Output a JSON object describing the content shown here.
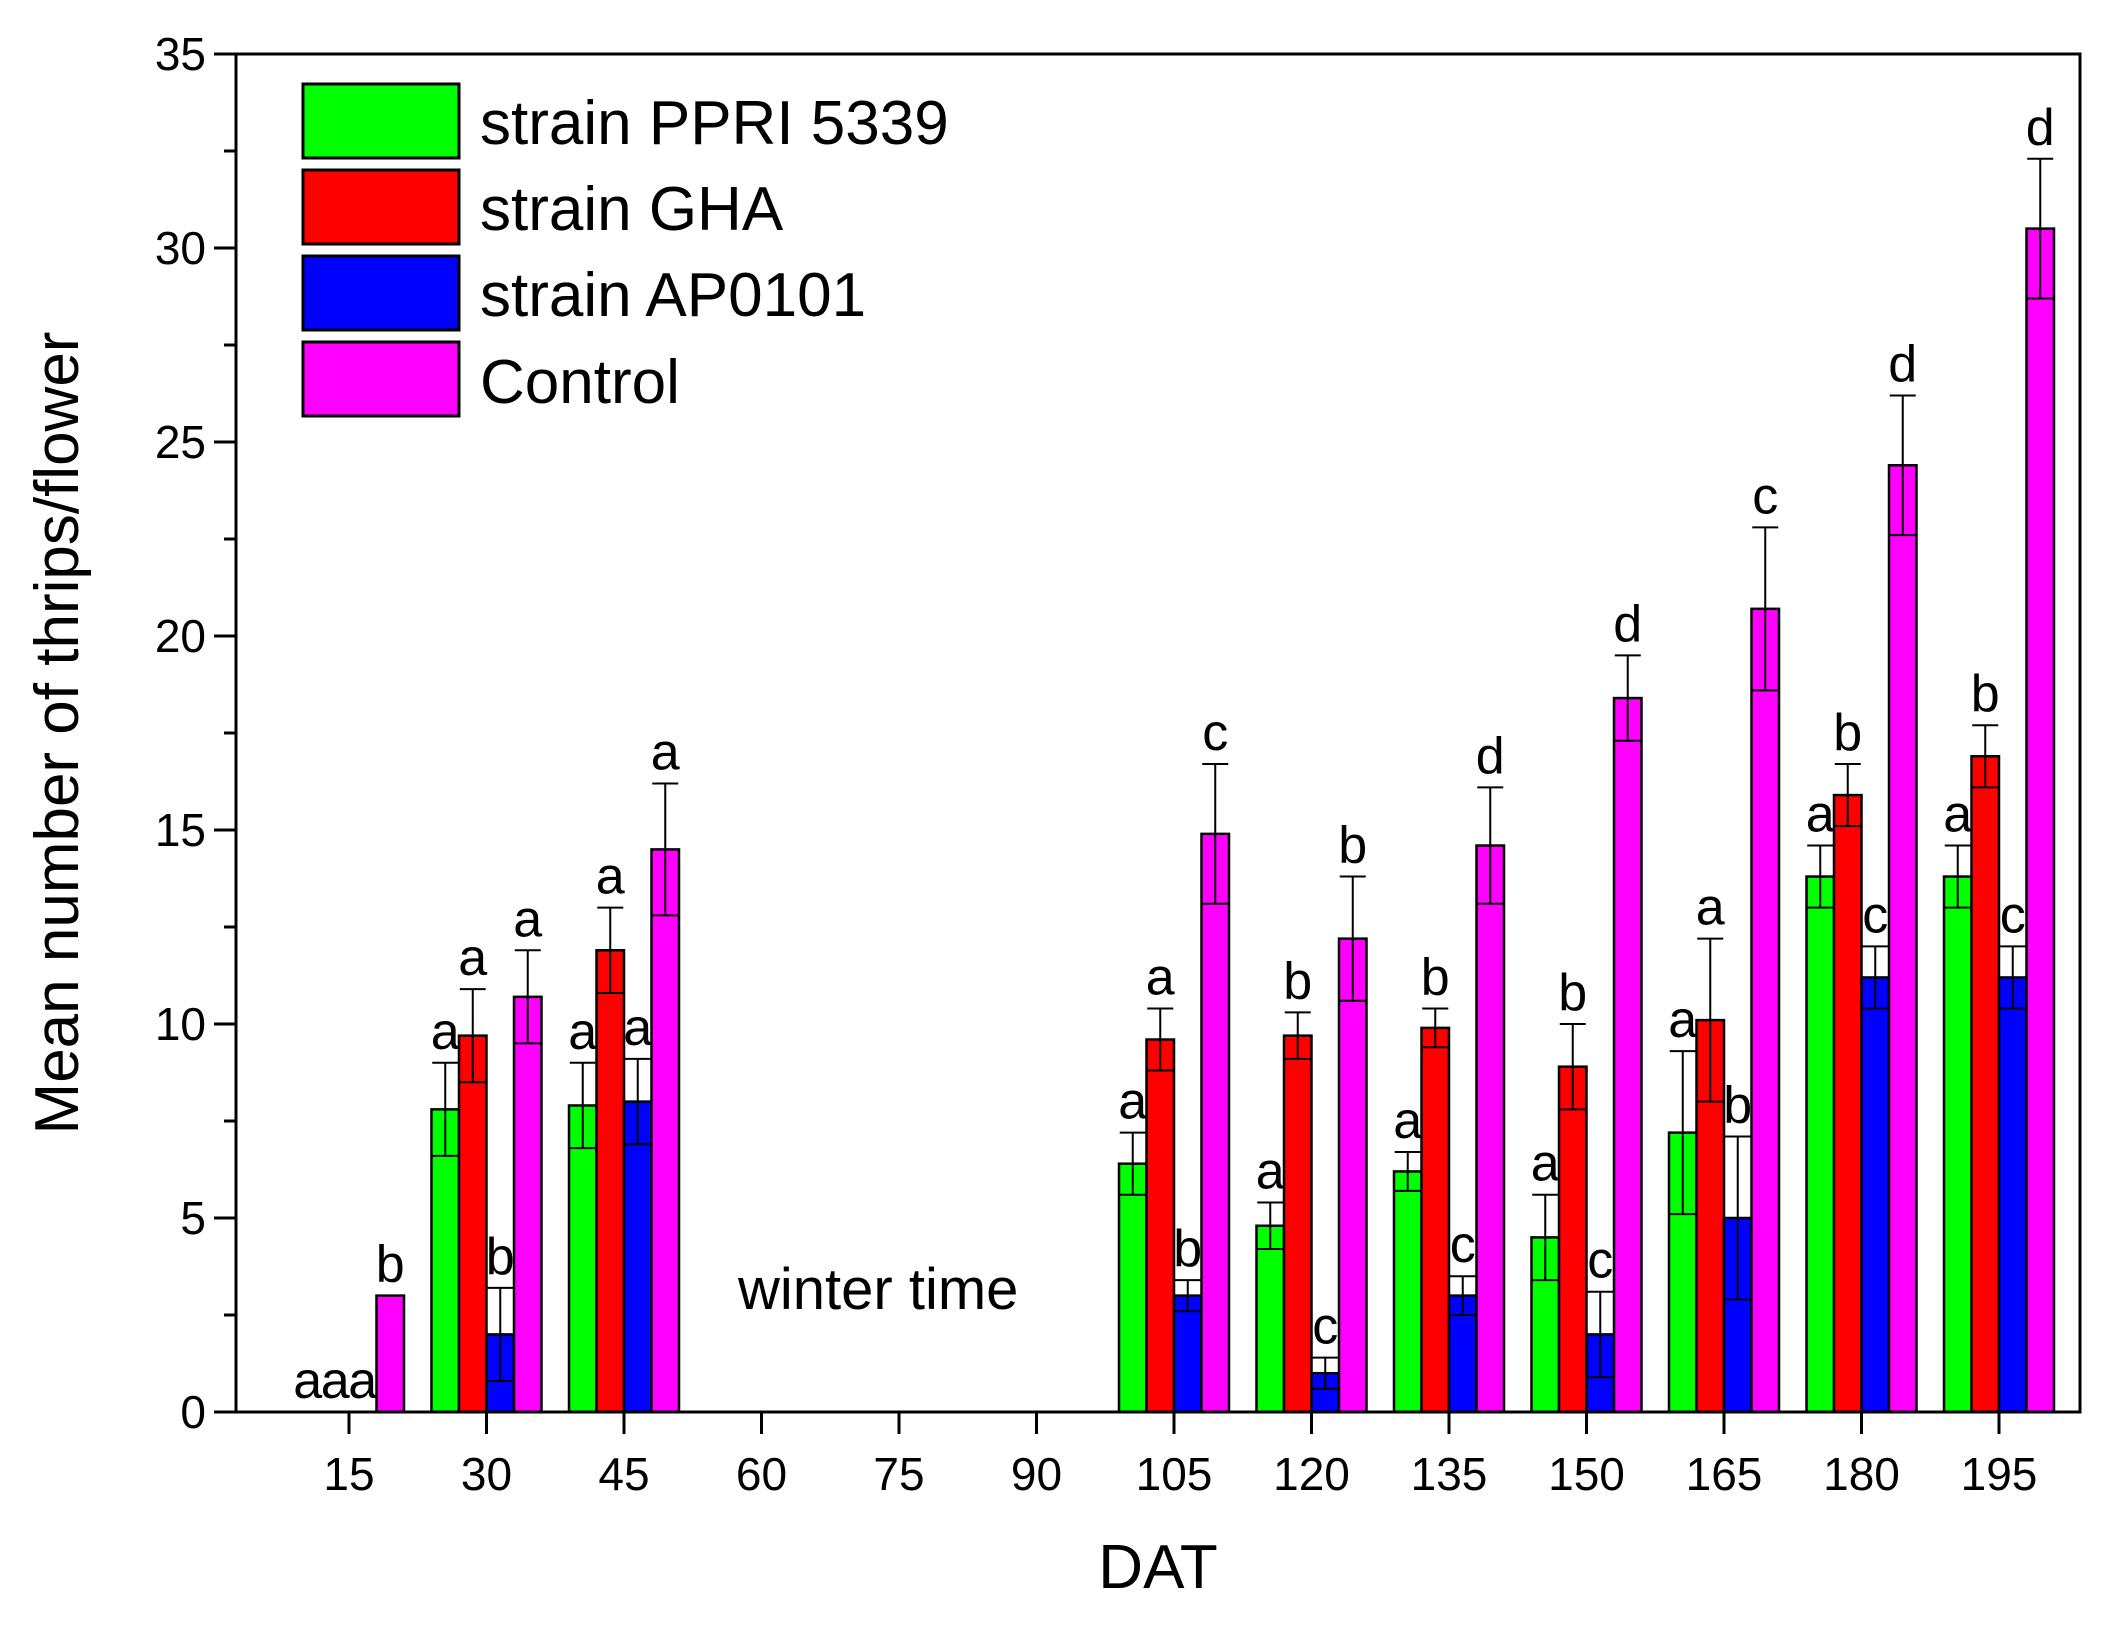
{
  "chart_data": {
    "type": "bar",
    "title": "",
    "xlabel": "DAT",
    "ylabel": "Mean number of thrips/flower",
    "ylim": [
      0,
      35
    ],
    "yticks": [
      0,
      5,
      10,
      15,
      20,
      25,
      30,
      35
    ],
    "categories": [
      "15",
      "30",
      "45",
      "60",
      "75",
      "90",
      "105",
      "120",
      "135",
      "150",
      "165",
      "180",
      "195"
    ],
    "legend_position": "top-left",
    "annotation": "winter time",
    "series": [
      {
        "name": "strain PPRI 5339",
        "color": "#00ff00",
        "values": [
          0,
          7.8,
          7.9,
          null,
          null,
          null,
          6.4,
          4.8,
          6.2,
          4.5,
          7.2,
          13.8,
          13.8
        ],
        "errors": [
          0,
          1.2,
          1.1,
          null,
          null,
          null,
          0.8,
          0.6,
          0.5,
          1.1,
          2.1,
          0.8,
          0.8
        ],
        "letters": [
          "a",
          "a",
          "a",
          "",
          "",
          "",
          "a",
          "a",
          "a",
          "a",
          "a",
          "a",
          "a"
        ]
      },
      {
        "name": "strain GHA",
        "color": "#ff0000",
        "values": [
          0,
          9.7,
          11.9,
          null,
          null,
          null,
          9.6,
          9.7,
          9.9,
          8.9,
          10.1,
          15.9,
          16.9
        ],
        "errors": [
          0,
          1.2,
          1.1,
          null,
          null,
          null,
          0.8,
          0.6,
          0.5,
          1.1,
          2.1,
          0.8,
          0.8
        ],
        "letters": [
          "a",
          "a",
          "a",
          "",
          "",
          "",
          "a",
          "b",
          "b",
          "b",
          "a",
          "b",
          "b"
        ]
      },
      {
        "name": "strain AP0101",
        "color": "#0000ff",
        "values": [
          0,
          2.0,
          8.0,
          null,
          null,
          null,
          3.0,
          1.0,
          3.0,
          2.0,
          5.0,
          11.2,
          11.2
        ],
        "errors": [
          0,
          1.2,
          1.1,
          null,
          null,
          null,
          0.4,
          0.4,
          0.5,
          1.1,
          2.1,
          0.8,
          0.8
        ],
        "letters": [
          "a",
          "b",
          "a",
          "",
          "",
          "",
          "b",
          "c",
          "c",
          "c",
          "b",
          "c",
          "c"
        ]
      },
      {
        "name": "Control",
        "color": "#ff00ff",
        "values": [
          3.0,
          10.7,
          14.5,
          null,
          null,
          null,
          14.9,
          12.2,
          14.6,
          18.4,
          20.7,
          24.4,
          30.5
        ],
        "errors": [
          0,
          1.2,
          1.7,
          null,
          null,
          null,
          1.8,
          1.6,
          1.5,
          1.1,
          2.1,
          1.8,
          1.8
        ],
        "letters": [
          "b",
          "a",
          "a",
          "",
          "",
          "",
          "c",
          "b",
          "d",
          "d",
          "c",
          "d",
          "d"
        ]
      }
    ]
  }
}
